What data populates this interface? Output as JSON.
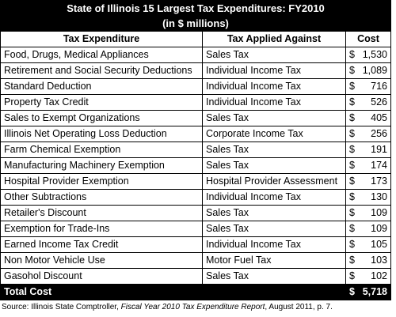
{
  "title_line1": "State of Illinois 15 Largest Tax Expenditures: FY2010",
  "title_line2": "(in $ millions)",
  "headers": {
    "expenditure": "Tax Expenditure",
    "applied": "Tax Applied Against",
    "cost": "Cost"
  },
  "currency": "$",
  "rows": [
    {
      "name": "Food, Drugs, Medical Appliances",
      "applied": "Sales Tax",
      "cost": "1,530"
    },
    {
      "name": "Retirement and Social Security Deductions",
      "applied": "Individual Income Tax",
      "cost": "1,089"
    },
    {
      "name": "Standard Deduction",
      "applied": "Individual Income Tax",
      "cost": "716"
    },
    {
      "name": "Property Tax Credit",
      "applied": "Individual Income Tax",
      "cost": "526"
    },
    {
      "name": "Sales to Exempt Organizations",
      "applied": "Sales Tax",
      "cost": "405"
    },
    {
      "name": "Illinois Net Operating Loss Deduction",
      "applied": "Corporate Income Tax",
      "cost": "256"
    },
    {
      "name": "Farm Chemical Exemption",
      "applied": "Sales Tax",
      "cost": "191"
    },
    {
      "name": "Manufacturing Machinery Exemption",
      "applied": "Sales Tax",
      "cost": "174"
    },
    {
      "name": "Hospital Provider Exemption",
      "applied": "Hospital Provider Assessment",
      "cost": "173"
    },
    {
      "name": "Other Subtractions",
      "applied": "Individual Income Tax",
      "cost": "130"
    },
    {
      "name": "Retailer's Discount",
      "applied": "Sales Tax",
      "cost": "109"
    },
    {
      "name": "Exemption for Trade-Ins",
      "applied": "Sales Tax",
      "cost": "109"
    },
    {
      "name": "Earned Income Tax Credit",
      "applied": "Individual Income Tax",
      "cost": "105"
    },
    {
      "name": "Non Motor Vehicle Use",
      "applied": "Motor Fuel Tax",
      "cost": "103"
    },
    {
      "name": "Gasohol Discount",
      "applied": "Sales Tax",
      "cost": "102"
    }
  ],
  "total": {
    "label": "Total Cost",
    "cost": "5,718"
  },
  "source": {
    "prefix": "Source: Illinois State Comptroller, ",
    "report": "Fiscal Year 2010 Tax Expenditure Report",
    "suffix": ", August 2011, p. 7."
  },
  "colors": {
    "header_bg": "#000000",
    "header_text": "#ffffff",
    "border": "#000000"
  }
}
